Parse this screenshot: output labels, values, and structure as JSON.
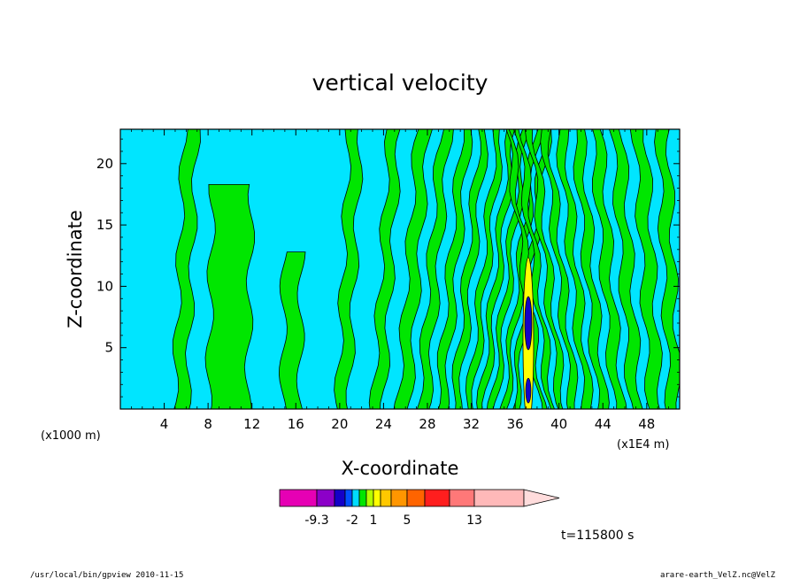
{
  "chart_data": {
    "type": "heatmap",
    "title": "vertical velocity",
    "xlabel": "X-coordinate",
    "ylabel": "Z-coordinate",
    "x_unit": "(x1000 m)",
    "x_unit_right": "(x1E4 m)",
    "xlim": [
      0,
      51
    ],
    "ylim": [
      0,
      22.8
    ],
    "x_ticks": [
      4,
      8,
      12,
      16,
      20,
      24,
      28,
      32,
      36,
      40,
      44,
      48
    ],
    "y_ticks": [
      5,
      10,
      15,
      20
    ],
    "grid": false,
    "colorbar": {
      "colors": [
        "#e600b4",
        "#8c00c8",
        "#1400c8",
        "#0050ff",
        "#00dcff",
        "#00e600",
        "#b4ff00",
        "#ffff00",
        "#ffc800",
        "#ff9600",
        "#ff6400",
        "#ff1e1e",
        "#ff7878",
        "#ffb9b9",
        "#ffdcdc"
      ],
      "labels": [
        {
          "text": "-9.3",
          "index": 0
        },
        {
          "text": "-2",
          "index": 3
        },
        {
          "text": "1",
          "index": 6
        },
        {
          "text": "5",
          "index": 9
        },
        {
          "text": "13",
          "index": 12
        }
      ]
    },
    "time_label": "t=115800 s",
    "dominant_colors": {
      "negative": "#00e5ff",
      "positive": "#00e600",
      "strong": "#1400c8"
    }
  },
  "footer": {
    "left": "/usr/local/bin/gpview   2010-11-15",
    "right": "arare-earth_VelZ.nc@VelZ"
  }
}
